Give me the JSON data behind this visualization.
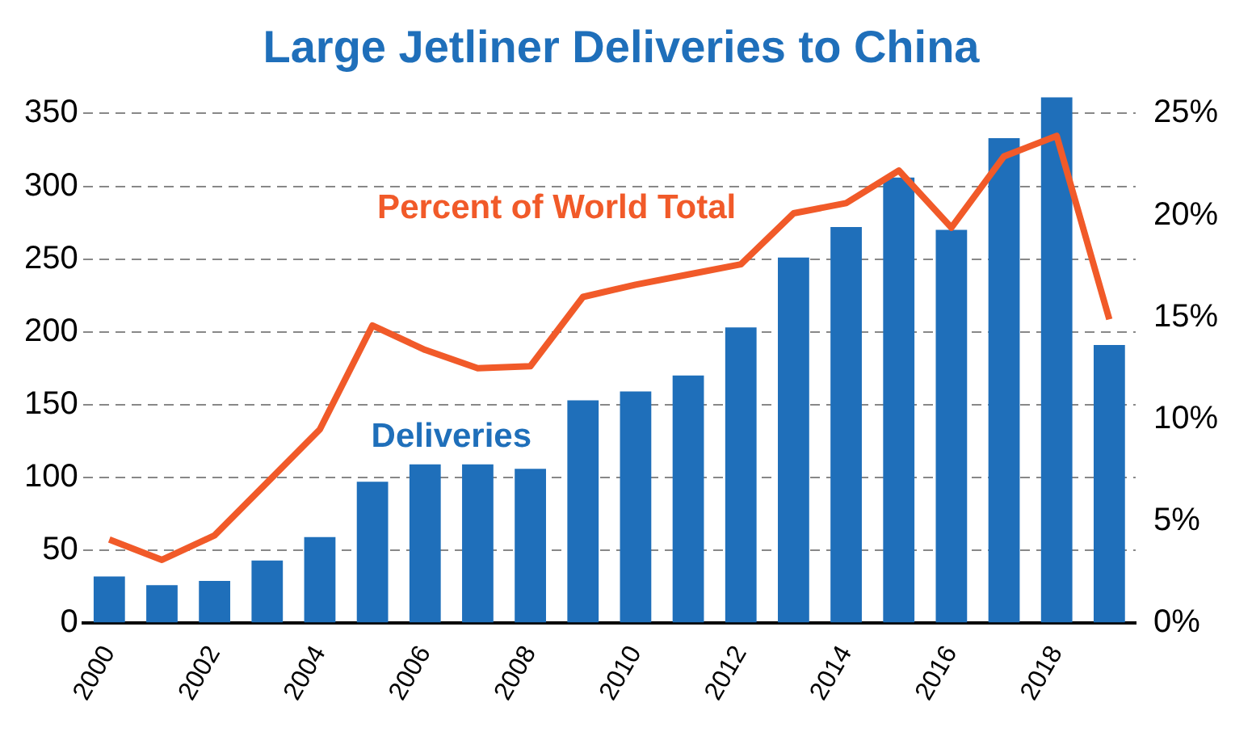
{
  "chart_data": {
    "type": "bar",
    "title": "Large Jetliner Deliveries to China",
    "categories": [
      "2000",
      null,
      "2002",
      null,
      "2004",
      null,
      "2006",
      null,
      "2008",
      null,
      "2010",
      null,
      "2012",
      null,
      "2014",
      null,
      "2016",
      null,
      "2018",
      null
    ],
    "series": [
      {
        "name": "Deliveries",
        "color": "#1f6fba",
        "values": [
          32,
          26,
          29,
          43,
          59,
          97,
          109,
          109,
          106,
          153,
          159,
          170,
          203,
          251,
          272,
          306,
          270,
          333,
          361,
          191
        ]
      },
      {
        "name": "Percent of World Total",
        "type": "line",
        "axis": "y2",
        "color": "#f15a29",
        "values": [
          4.1,
          3.1,
          4.3,
          6.9,
          9.5,
          14.6,
          13.4,
          12.5,
          12.6,
          16.0,
          16.6,
          17.1,
          17.6,
          20.1,
          20.6,
          22.2,
          19.4,
          22.9,
          23.9,
          14.9
        ]
      }
    ],
    "ylim": [
      0,
      364
    ],
    "yticks": [
      0,
      50,
      100,
      150,
      200,
      250,
      300,
      350
    ],
    "y2lim": [
      0,
      26
    ],
    "y2ticks": [
      {
        "value": 0,
        "label": "0%"
      },
      {
        "value": 5,
        "label": "5%"
      },
      {
        "value": 10,
        "label": "10%"
      },
      {
        "value": 15,
        "label": "15%"
      },
      {
        "value": 20,
        "label": "20%"
      },
      {
        "value": 25,
        "label": "25%"
      }
    ],
    "grid": "y",
    "legend": false,
    "marker": "none",
    "line_style": "solid"
  }
}
